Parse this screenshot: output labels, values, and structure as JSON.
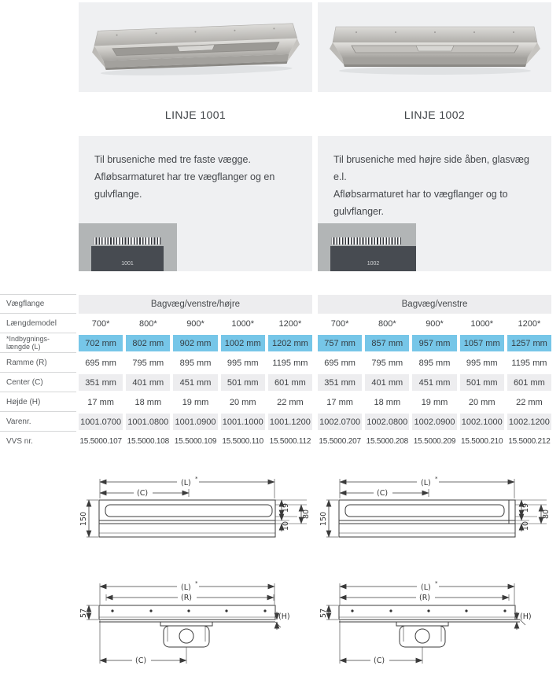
{
  "colors": {
    "box_bg": "#eff0f2",
    "highlight_blue": "#76c6e8",
    "cell_gray": "#ededef",
    "diagram_gray": "#b2b5b6",
    "diagram_dark": "#474b51",
    "text_dark": "#3f4245",
    "label_gray": "#56595c"
  },
  "products": [
    {
      "title": "LINJE 1001",
      "description": "Til bruseniche med tre faste vægge.\nAfløbsarmaturet har tre vægflanger og en\ngulvflange.",
      "diagram_label": "1001",
      "table": {
        "flange_header": "Bagvæg/venstre/højre",
        "laengdemodel": [
          "700*",
          "800*",
          "900*",
          "1000*",
          "1200*"
        ],
        "indbygning": [
          "702 mm",
          "802 mm",
          "902 mm",
          "1002 mm",
          "1202 mm"
        ],
        "ramme": [
          "695 mm",
          "795 mm",
          "895 mm",
          "995 mm",
          "1195 mm"
        ],
        "center": [
          "351 mm",
          "401 mm",
          "451 mm",
          "501 mm",
          "601 mm"
        ],
        "hoejde": [
          "17 mm",
          "18 mm",
          "19 mm",
          "20 mm",
          "22 mm"
        ],
        "varenr": [
          "1001.0700",
          "1001.0800",
          "1001.0900",
          "1001.1000",
          "1001.1200"
        ],
        "vvs": [
          "15.5000.107",
          "15.5000.108",
          "15.5000.109",
          "15.5000.110",
          "15.5000.112"
        ]
      }
    },
    {
      "title": "LINJE 1002",
      "description": "Til bruseniche med højre side åben, glasvæg e.l.\nAfløbsarmaturet har to vægflanger og to\ngulvflanger.",
      "diagram_label": "1002",
      "table": {
        "flange_header": "Bagvæg/venstre",
        "laengdemodel": [
          "700*",
          "800*",
          "900*",
          "1000*",
          "1200*"
        ],
        "indbygning": [
          "757 mm",
          "857 mm",
          "957 mm",
          "1057 mm",
          "1257 mm"
        ],
        "ramme": [
          "695 mm",
          "795 mm",
          "895 mm",
          "995 mm",
          "1195 mm"
        ],
        "center": [
          "351 mm",
          "401 mm",
          "451 mm",
          "501 mm",
          "601 mm"
        ],
        "hoejde": [
          "17 mm",
          "18 mm",
          "19 mm",
          "20 mm",
          "22 mm"
        ],
        "varenr": [
          "1002.0700",
          "1002.0800",
          "1002.0900",
          "1002.1000",
          "1002.1200"
        ],
        "vvs": [
          "15.5000.207",
          "15.5000.208",
          "15.5000.209",
          "15.5000.210",
          "15.5000.212"
        ]
      }
    }
  ],
  "table_labels": {
    "vaegflange": "Vægflange",
    "laengdemodel": "Længdemodel",
    "indbygning": "*Indbygnings-\nlængde (L)",
    "ramme": "Ramme (R)",
    "center": "Center (C)",
    "hoejde": "Højde (H)",
    "varenr": "Varenr.",
    "vvs": "VVS nr."
  },
  "drawing_dims": {
    "L": "(L)",
    "star": "*",
    "C": "(C)",
    "R": "(R)",
    "H": "(H)",
    "d150": "150",
    "d19": "19",
    "d80": "80",
    "d10": "10",
    "d57": "57"
  }
}
